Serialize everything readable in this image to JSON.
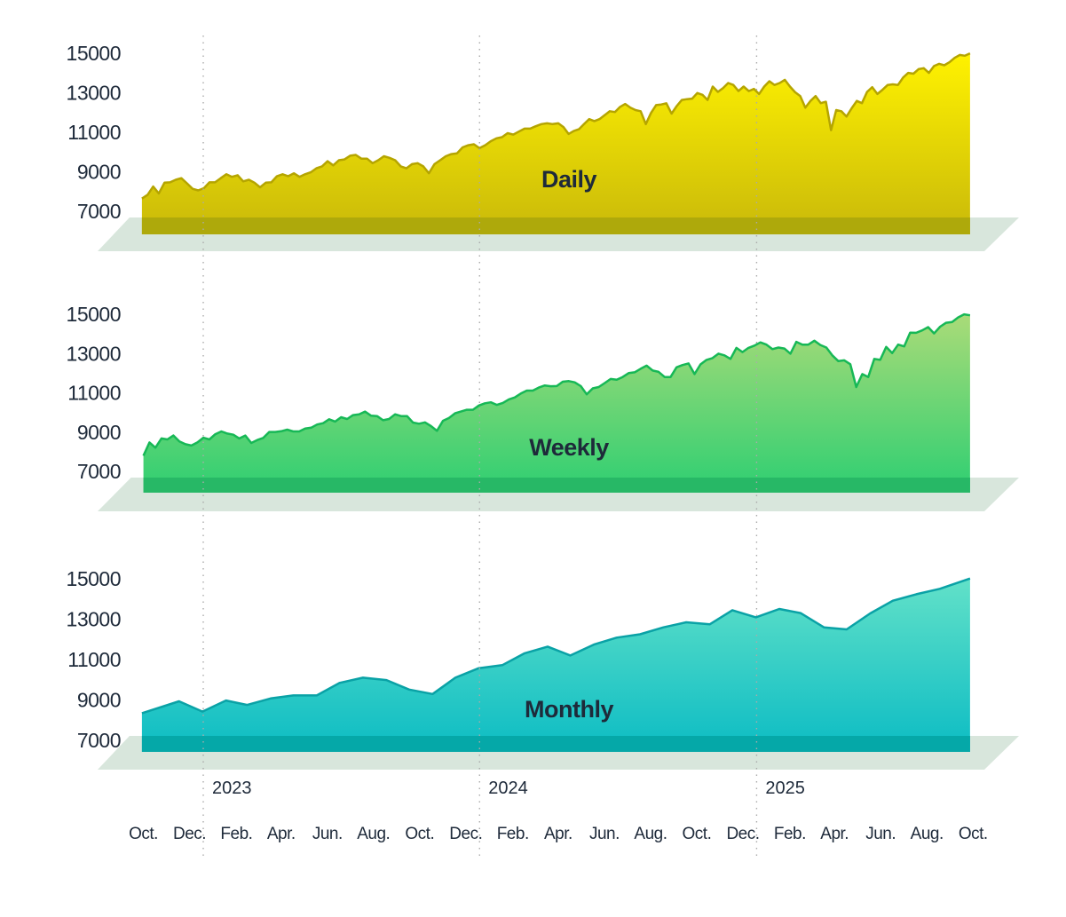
{
  "chart_data": [
    {
      "type": "area",
      "title": "Daily",
      "ylim": [
        7000,
        15000
      ],
      "yticks": [
        "15000",
        "13000",
        "11000",
        "9000",
        "7000"
      ],
      "colors": {
        "top": "#fff200",
        "bottom": "#c9b90a",
        "line": "#b5a500",
        "band": "#aea90b"
      },
      "segments": [
        {
          "start": "2022-10-12",
          "end": "2024-04-14",
          "values": [
            7600,
            7790,
            8210,
            7860,
            8400,
            8420,
            8550,
            8630,
            8370,
            8090,
            8010,
            8120,
            8420,
            8420,
            8630,
            8830,
            8700,
            8780,
            8470,
            8550,
            8400,
            8170,
            8400,
            8420,
            8730,
            8830,
            8730,
            8880,
            8700,
            8830,
            8930,
            9130,
            9230,
            9490,
            9280,
            9540,
            9580,
            9770,
            9810,
            9620,
            9620,
            9390,
            9540,
            9740,
            9660,
            9540,
            9230,
            9130,
            9340,
            9390,
            9230,
            8880,
            9340,
            9540,
            9740,
            9850,
            9890,
            10190,
            10300,
            10350,
            10150,
            10300,
            10500,
            10650,
            10710,
            10910,
            10840,
            10990,
            11140,
            11140,
            11260,
            11370,
            11410,
            11370,
            11410
          ]
        },
        {
          "start": "2024-04-14",
          "end": "2025-10-10",
          "values": [
            11410,
            11220,
            10870,
            11020,
            11110,
            11370,
            11620,
            11520,
            11620,
            11820,
            12020,
            11980,
            12240,
            12390,
            12200,
            12080,
            12020,
            11370,
            11930,
            12330,
            12360,
            12420,
            11900,
            12280,
            12590,
            12630,
            12660,
            12940,
            12850,
            12590,
            13270,
            13000,
            13190,
            13450,
            13350,
            13040,
            13270,
            13040,
            13150,
            12890,
            13270,
            13540,
            13350,
            13450,
            13610,
            13270,
            12980,
            12790,
            12200,
            12540,
            12790,
            12430,
            12500,
            11060,
            12080,
            12020,
            11750,
            12170,
            12540,
            12430,
            13000,
            13240,
            12890,
            13110,
            13350,
            13380,
            13350,
            13730,
            13960,
            13920,
            14150,
            14200,
            13960,
            14310,
            14420,
            14350,
            14500,
            14720,
            14870,
            14830,
            14950
          ]
        }
      ]
    },
    {
      "type": "area",
      "title": "Weekly",
      "ylim": [
        7000,
        15000
      ],
      "yticks": [
        "15000",
        "13000",
        "11000",
        "9000",
        "7000"
      ],
      "colors": {
        "top": "#aadb78",
        "bottom": "#2ecf72",
        "line": "#17b856",
        "band": "#27b866"
      },
      "segments": [
        {
          "start": "2022-10-14",
          "end": "2025-10-10",
          "values": [
            7750,
            8430,
            8160,
            8630,
            8580,
            8780,
            8480,
            8340,
            8270,
            8430,
            8670,
            8580,
            8850,
            8990,
            8880,
            8820,
            8630,
            8780,
            8400,
            8550,
            8660,
            8960,
            8960,
            9000,
            9080,
            8990,
            8990,
            9140,
            9180,
            9340,
            9410,
            9610,
            9490,
            9710,
            9620,
            9820,
            9860,
            10000,
            9790,
            9770,
            9560,
            9620,
            9860,
            9770,
            9770,
            9440,
            9380,
            9450,
            9260,
            9020,
            9530,
            9670,
            9910,
            10000,
            10090,
            10090,
            10310,
            10420,
            10470,
            10340,
            10440,
            10620,
            10720,
            10920,
            11070,
            11070,
            11220,
            11330,
            11290,
            11300,
            11520,
            11550,
            11490,
            11300,
            10880,
            11180,
            11250,
            11450,
            11660,
            11620,
            11760,
            11960,
            12000,
            12180,
            12340,
            12090,
            12020,
            11760,
            11760,
            12250,
            12370,
            12450,
            11910,
            12400,
            12630,
            12720,
            12950,
            12860,
            12680,
            13240,
            13030,
            13240,
            13360,
            13520,
            13410,
            13180,
            13260,
            13210,
            12950,
            13550,
            13410,
            13410,
            13610,
            13390,
            13260,
            12860,
            12570,
            12610,
            12410,
            11250,
            11910,
            11760,
            12680,
            12630,
            13290,
            12980,
            13410,
            13320,
            14020,
            14010,
            14130,
            14300,
            13980,
            14320,
            14520,
            14560,
            14790,
            14950,
            14900
          ]
        }
      ]
    },
    {
      "type": "area",
      "title": "Monthly",
      "ylim": [
        7000,
        15000
      ],
      "yticks": [
        "15000",
        "13000",
        "11000",
        "9000",
        "7000"
      ],
      "colors": {
        "top": "#62e1c8",
        "bottom": "#0cbcc4",
        "line": "#0aa2a6",
        "band": "#05a8a8"
      },
      "x": [
        "2022-10-12",
        "2022-11-30",
        "2022-12-31",
        "2023-01-31",
        "2023-02-28",
        "2023-03-31",
        "2023-04-30",
        "2023-05-31",
        "2023-06-30",
        "2023-07-31",
        "2023-08-31",
        "2023-09-30",
        "2023-10-31",
        "2023-11-30",
        "2023-12-31",
        "2024-01-31",
        "2024-02-29",
        "2024-03-31",
        "2024-04-30",
        "2024-05-31",
        "2024-06-30",
        "2024-07-31",
        "2024-08-31",
        "2024-09-30",
        "2024-10-31",
        "2024-11-30",
        "2024-12-31",
        "2025-01-31",
        "2025-02-28",
        "2025-03-31",
        "2025-04-30",
        "2025-05-31",
        "2025-06-30",
        "2025-07-31",
        "2025-08-31",
        "2025-10-10"
      ],
      "values": [
        8300,
        8890,
        8380,
        8930,
        8710,
        9030,
        9180,
        9180,
        9800,
        10060,
        9940,
        9470,
        9250,
        10060,
        10530,
        10680,
        11260,
        11600,
        11160,
        11700,
        12040,
        12210,
        12550,
        12800,
        12700,
        13400,
        13050,
        13460,
        13260,
        12550,
        12450,
        13240,
        13870,
        14190,
        14460,
        14970
      ]
    }
  ],
  "x_axis": {
    "years": [
      {
        "label": "2023",
        "date": "2023-01-01"
      },
      {
        "label": "2024",
        "date": "2024-01-01"
      },
      {
        "label": "2025",
        "date": "2025-01-01"
      }
    ],
    "months": [
      {
        "label": "Oct.",
        "date": "2022-10-01"
      },
      {
        "label": "Dec.",
        "date": "2022-12-01"
      },
      {
        "label": "Feb.",
        "date": "2023-02-01"
      },
      {
        "label": "Apr.",
        "date": "2023-04-01"
      },
      {
        "label": "Jun.",
        "date": "2023-06-01"
      },
      {
        "label": "Aug.",
        "date": "2023-08-01"
      },
      {
        "label": "Oct.",
        "date": "2023-10-01"
      },
      {
        "label": "Dec.",
        "date": "2023-12-01"
      },
      {
        "label": "Feb.",
        "date": "2024-02-01"
      },
      {
        "label": "Apr.",
        "date": "2024-04-01"
      },
      {
        "label": "Jun.",
        "date": "2024-06-01"
      },
      {
        "label": "Aug.",
        "date": "2024-08-01"
      },
      {
        "label": "Oct.",
        "date": "2024-10-01"
      },
      {
        "label": "Dec.",
        "date": "2024-12-01"
      },
      {
        "label": "Feb.",
        "date": "2025-02-01"
      },
      {
        "label": "Apr.",
        "date": "2025-04-01"
      },
      {
        "label": "Jun.",
        "date": "2025-06-01"
      },
      {
        "label": "Aug.",
        "date": "2025-08-01"
      },
      {
        "label": "Oct.",
        "date": "2025-10-01"
      }
    ]
  },
  "floor_color": "#d8e6dc",
  "gridline_color": "#aaaaaa"
}
